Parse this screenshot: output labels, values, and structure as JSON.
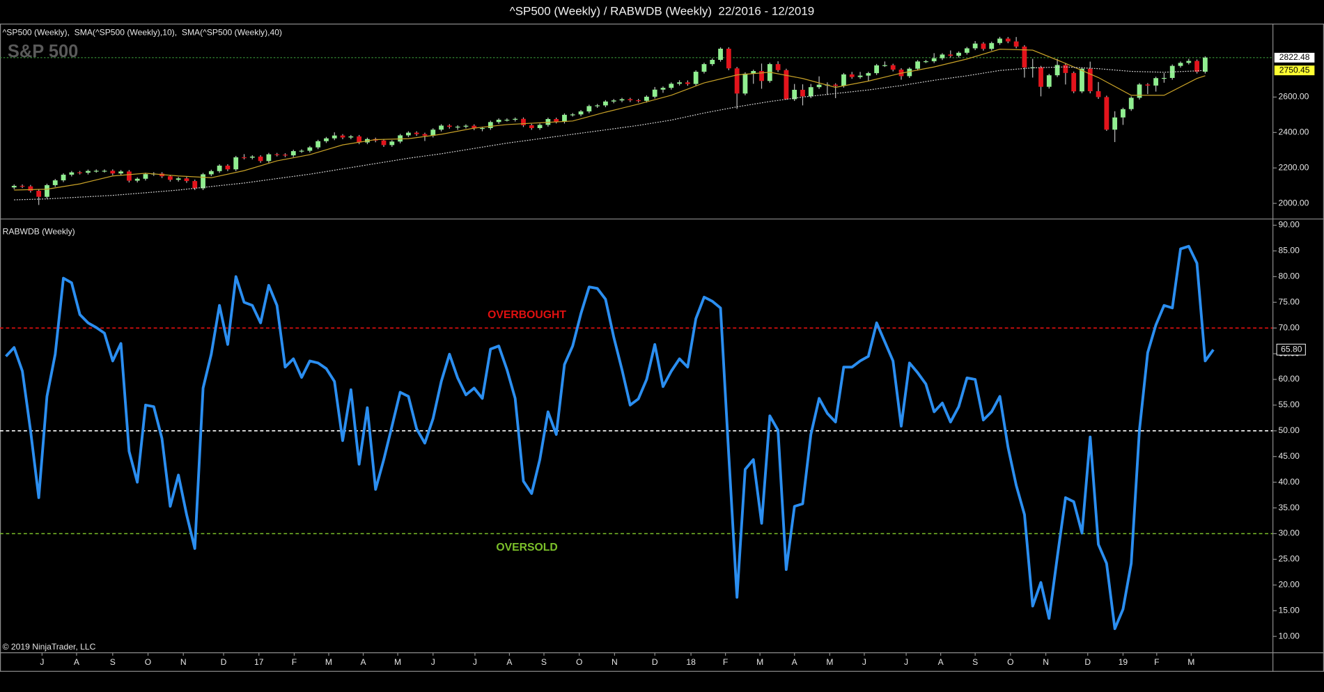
{
  "chart_data": [
    {
      "type": "candlestick",
      "title": "^SP500 (Weekly) / RABWDB (Weekly)  22/2016 - 12/2019",
      "subtitle": "^SP500 (Weekly),  SMA(^SP500 (Weekly),10),  SMA(^SP500 (Weekly),40)",
      "watermark": "S&P 500",
      "up_color": "#90ee90",
      "down_color": "#e3141c",
      "wick_color": "#bdbdbd",
      "open": [
        2090,
        2099,
        2096,
        2071,
        2037,
        2103,
        2130,
        2162,
        2175,
        2173,
        2183,
        2184,
        2184,
        2169,
        2180,
        2128,
        2139,
        2165,
        2168,
        2153,
        2133,
        2141,
        2126,
        2085,
        2164,
        2182,
        2213,
        2192,
        2260,
        2258,
        2264,
        2239,
        2277,
        2275,
        2271,
        2295,
        2297,
        2316,
        2351,
        2367,
        2383,
        2372,
        2378,
        2344,
        2363,
        2355,
        2329,
        2349,
        2384,
        2399,
        2391,
        2382,
        2416,
        2439,
        2432,
        2433,
        2438,
        2423,
        2425,
        2459,
        2472,
        2472,
        2477,
        2441,
        2425,
        2443,
        2476,
        2461,
        2500,
        2502,
        2519,
        2549,
        2553,
        2575,
        2581,
        2588,
        2582,
        2579,
        2602,
        2642,
        2652,
        2675,
        2683,
        2674,
        2743,
        2786,
        2810,
        2873,
        2762,
        2620,
        2732,
        2747,
        2691,
        2786,
        2752,
        2588,
        2641,
        2604,
        2656,
        2670,
        2670,
        2663,
        2728,
        2713,
        2721,
        2735,
        2779,
        2780,
        2755,
        2718,
        2760,
        2801,
        2802,
        2819,
        2840,
        2833,
        2850,
        2875,
        2902,
        2872,
        2905,
        2930,
        2914,
        2885,
        2767,
        2768,
        2658,
        2723,
        2781,
        2736,
        2632,
        2760,
        2633,
        2600,
        2416,
        2485,
        2532,
        2596,
        2671,
        2665,
        2707,
        2708,
        2776,
        2793,
        2804,
        2743
      ],
      "high": [
        2107,
        2107,
        2104,
        2079,
        2111,
        2138,
        2170,
        2183,
        2183,
        2191,
        2192,
        2192,
        2192,
        2188,
        2188,
        2147,
        2173,
        2176,
        2176,
        2161,
        2149,
        2149,
        2134,
        2172,
        2190,
        2221,
        2221,
        2268,
        2278,
        2272,
        2272,
        2285,
        2285,
        2283,
        2303,
        2305,
        2324,
        2359,
        2375,
        2401,
        2391,
        2386,
        2386,
        2371,
        2371,
        2363,
        2357,
        2392,
        2407,
        2407,
        2399,
        2424,
        2447,
        2447,
        2441,
        2446,
        2446,
        2433,
        2467,
        2480,
        2480,
        2485,
        2485,
        2449,
        2451,
        2484,
        2484,
        2508,
        2510,
        2527,
        2557,
        2561,
        2583,
        2589,
        2596,
        2596,
        2590,
        2610,
        2657,
        2660,
        2683,
        2695,
        2694,
        2751,
        2794,
        2818,
        2881,
        2881,
        2770,
        2740,
        2755,
        2789,
        2794,
        2802,
        2760,
        2674,
        2672,
        2674,
        2717,
        2683,
        2678,
        2736,
        2742,
        2742,
        2743,
        2787,
        2801,
        2788,
        2763,
        2768,
        2809,
        2810,
        2848,
        2848,
        2863,
        2858,
        2883,
        2916,
        2910,
        2913,
        2940,
        2939,
        2939,
        2893,
        2816,
        2776,
        2731,
        2816,
        2789,
        2744,
        2768,
        2800,
        2685,
        2608,
        2520,
        2540,
        2604,
        2679,
        2679,
        2715,
        2736,
        2784,
        2801,
        2816,
        2812,
        2830
      ],
      "low": [
        2080,
        2086,
        2061,
        1991,
        2027,
        2093,
        2120,
        2152,
        2163,
        2163,
        2173,
        2174,
        2159,
        2159,
        2118,
        2118,
        2129,
        2155,
        2143,
        2123,
        2123,
        2116,
        2075,
        2075,
        2154,
        2172,
        2182,
        2182,
        2248,
        2248,
        2229,
        2229,
        2265,
        2261,
        2261,
        2285,
        2287,
        2306,
        2341,
        2357,
        2362,
        2362,
        2334,
        2334,
        2345,
        2319,
        2319,
        2339,
        2374,
        2381,
        2352,
        2372,
        2406,
        2422,
        2415,
        2423,
        2413,
        2407,
        2415,
        2449,
        2462,
        2462,
        2431,
        2415,
        2415,
        2433,
        2451,
        2451,
        2490,
        2492,
        2509,
        2539,
        2543,
        2565,
        2571,
        2572,
        2569,
        2569,
        2592,
        2624,
        2642,
        2665,
        2664,
        2664,
        2733,
        2776,
        2800,
        2752,
        2533,
        2610,
        2675,
        2647,
        2681,
        2742,
        2585,
        2578,
        2553,
        2594,
        2646,
        2612,
        2594,
        2653,
        2703,
        2703,
        2691,
        2725,
        2770,
        2745,
        2698,
        2708,
        2750,
        2792,
        2792,
        2809,
        2823,
        2823,
        2840,
        2865,
        2862,
        2862,
        2895,
        2904,
        2875,
        2710,
        2710,
        2604,
        2648,
        2713,
        2671,
        2622,
        2622,
        2621,
        2590,
        2409,
        2346,
        2443,
        2522,
        2586,
        2617,
        2631,
        2681,
        2698,
        2766,
        2784,
        2733,
        2733
      ],
      "close": [
        2099,
        2096,
        2071,
        2037,
        2103,
        2130,
        2162,
        2175,
        2173,
        2183,
        2184,
        2184,
        2169,
        2180,
        2128,
        2139,
        2165,
        2168,
        2153,
        2133,
        2141,
        2126,
        2085,
        2164,
        2182,
        2213,
        2192,
        2260,
        2258,
        2264,
        2239,
        2277,
        2275,
        2271,
        2295,
        2297,
        2316,
        2351,
        2367,
        2383,
        2372,
        2378,
        2344,
        2363,
        2355,
        2329,
        2349,
        2384,
        2399,
        2391,
        2382,
        2416,
        2439,
        2432,
        2433,
        2438,
        2423,
        2425,
        2459,
        2472,
        2472,
        2477,
        2441,
        2425,
        2443,
        2476,
        2461,
        2500,
        2502,
        2519,
        2549,
        2553,
        2575,
        2581,
        2588,
        2582,
        2579,
        2602,
        2642,
        2652,
        2675,
        2683,
        2674,
        2743,
        2786,
        2810,
        2873,
        2762,
        2620,
        2732,
        2747,
        2691,
        2786,
        2752,
        2588,
        2641,
        2604,
        2656,
        2670,
        2670,
        2663,
        2728,
        2713,
        2721,
        2735,
        2779,
        2780,
        2755,
        2718,
        2760,
        2801,
        2802,
        2819,
        2840,
        2833,
        2850,
        2875,
        2902,
        2872,
        2905,
        2930,
        2914,
        2885,
        2767,
        2768,
        2658,
        2723,
        2781,
        2736,
        2632,
        2760,
        2633,
        2600,
        2416,
        2485,
        2532,
        2596,
        2671,
        2665,
        2707,
        2708,
        2776,
        2793,
        2804,
        2743,
        2822.48
      ],
      "series": [
        {
          "color": "#c9a227",
          "line_style": "solid",
          "x": [
            0,
            4,
            8,
            12,
            16,
            20,
            24,
            28,
            32,
            36,
            40,
            44,
            48,
            52,
            56,
            60,
            64,
            68,
            72,
            76,
            80,
            84,
            88,
            92,
            96,
            100,
            104,
            108,
            112,
            116,
            120,
            124,
            128,
            132,
            136,
            140,
            144,
            145
          ],
          "values": [
            2075,
            2080,
            2110,
            2155,
            2170,
            2155,
            2145,
            2185,
            2240,
            2275,
            2330,
            2360,
            2365,
            2390,
            2425,
            2445,
            2455,
            2465,
            2515,
            2560,
            2610,
            2680,
            2725,
            2740,
            2705,
            2655,
            2690,
            2735,
            2770,
            2815,
            2870,
            2865,
            2790,
            2710,
            2610,
            2610,
            2705,
            2720
          ]
        },
        {
          "color": "#d9d9d9",
          "line_style": "dotted",
          "x": [
            0,
            4,
            8,
            12,
            16,
            20,
            24,
            28,
            32,
            36,
            40,
            44,
            48,
            52,
            56,
            60,
            64,
            68,
            72,
            76,
            80,
            84,
            88,
            92,
            96,
            100,
            104,
            108,
            112,
            116,
            120,
            124,
            128,
            132,
            136,
            140,
            144,
            145
          ],
          "values": [
            2020,
            2025,
            2035,
            2045,
            2060,
            2075,
            2095,
            2115,
            2140,
            2165,
            2195,
            2225,
            2255,
            2280,
            2310,
            2340,
            2365,
            2390,
            2415,
            2440,
            2470,
            2510,
            2545,
            2575,
            2600,
            2620,
            2640,
            2665,
            2695,
            2720,
            2750,
            2765,
            2770,
            2760,
            2745,
            2740,
            2748,
            2750.45
          ]
        }
      ],
      "price_labels": [
        {
          "value": 2822.48,
          "label": "2822.48",
          "background": "#ffffff",
          "line_color": "#3a9a3a"
        },
        {
          "value": 2750.45,
          "label": "2750.45",
          "background": "#ffff33"
        }
      ],
      "ylim": [
        1919,
        3005
      ],
      "yticks": [
        {
          "value": 2000,
          "label": "2000.00"
        },
        {
          "value": 2200,
          "label": "2200.00"
        },
        {
          "value": 2400,
          "label": "2400.00"
        },
        {
          "value": 2600,
          "label": "2600.00"
        }
      ]
    },
    {
      "type": "line",
      "subtitle": "RABWDB (Weekly)",
      "footer": "© 2019 NinjaTrader, LLC",
      "color": "#2b8ef0",
      "values": [
        64.5,
        66.2,
        61.6,
        50,
        37,
        56.7,
        64.9,
        79.7,
        78.8,
        72.6,
        71,
        70.1,
        69,
        63.6,
        67,
        46,
        40,
        55,
        54.7,
        48.5,
        35.3,
        41.4,
        33.7,
        27.1,
        58.3,
        64.9,
        74.4,
        66.8,
        80,
        75,
        74.4,
        71,
        78.3,
        74.4,
        62.4,
        64,
        60.4,
        63.6,
        63.2,
        62.1,
        59.6,
        48.1,
        58,
        43.5,
        54.5,
        38.6,
        44.4,
        50.9,
        57.5,
        56.7,
        50.4,
        47.6,
        52.4,
        59.6,
        64.9,
        60.3,
        57,
        58.3,
        56.3,
        65.9,
        66.5,
        61.9,
        56.3,
        40.2,
        37.8,
        44.4,
        53.7,
        49.3,
        62.9,
        66.5,
        72.8,
        78,
        77.7,
        75.6,
        68.2,
        61.9,
        55,
        56.2,
        60,
        66.8,
        58.6,
        61.6,
        64,
        62.4,
        71.8,
        76,
        75.2,
        73.9,
        45.2,
        17.6,
        42.5,
        44.4,
        32,
        52.9,
        50.1,
        23,
        35.3,
        35.8,
        49.3,
        56.3,
        53.4,
        51.7,
        62.4,
        62.4,
        63.6,
        64.5,
        71,
        67.3,
        63.6,
        50.9,
        63.2,
        61.3,
        59.1,
        53.7,
        55.4,
        51.7,
        54.7,
        60.3,
        60,
        52.1,
        53.7,
        56.7,
        46.8,
        39.4,
        33.7,
        15.9,
        20.5,
        13.5,
        25.5,
        37,
        36.2,
        30.1,
        48.8,
        27.9,
        24.2,
        11.5,
        15.3,
        24.2,
        50.1,
        65.2,
        70.6,
        74.4,
        73.9,
        85.4,
        85.9,
        82.6,
        63.6,
        65.8
      ],
      "last_label": {
        "value": 65.8,
        "label": "65.80"
      },
      "hlines": [
        {
          "value": 70,
          "color": "#e01010",
          "label": "OVERBOUGHT"
        },
        {
          "value": 50,
          "color": "#ffffff"
        },
        {
          "value": 30,
          "color": "#7cc02a",
          "label": "OVERSOLD"
        }
      ],
      "xlim": [
        0,
        147
      ],
      "xticks": [
        {
          "value": 4.4,
          "label": "J"
        },
        {
          "value": 8.6,
          "label": "A"
        },
        {
          "value": 13,
          "label": "S"
        },
        {
          "value": 17.3,
          "label": "O"
        },
        {
          "value": 21.6,
          "label": "N"
        },
        {
          "value": 26.5,
          "label": "D"
        },
        {
          "value": 30.8,
          "label": "17"
        },
        {
          "value": 35.1,
          "label": "F"
        },
        {
          "value": 39.3,
          "label": "M"
        },
        {
          "value": 43.5,
          "label": "A"
        },
        {
          "value": 47.7,
          "label": "M"
        },
        {
          "value": 52,
          "label": "J"
        },
        {
          "value": 57.1,
          "label": "J"
        },
        {
          "value": 61.3,
          "label": "A"
        },
        {
          "value": 65.5,
          "label": "S"
        },
        {
          "value": 69.8,
          "label": "O"
        },
        {
          "value": 74.1,
          "label": "N"
        },
        {
          "value": 79,
          "label": "D"
        },
        {
          "value": 83.4,
          "label": "18"
        },
        {
          "value": 87.6,
          "label": "F"
        },
        {
          "value": 91.8,
          "label": "M"
        },
        {
          "value": 96,
          "label": "A"
        },
        {
          "value": 100.3,
          "label": "M"
        },
        {
          "value": 104.5,
          "label": "J"
        },
        {
          "value": 109.6,
          "label": "J"
        },
        {
          "value": 113.8,
          "label": "A"
        },
        {
          "value": 118,
          "label": "S"
        },
        {
          "value": 122.3,
          "label": "O"
        },
        {
          "value": 126.6,
          "label": "N"
        },
        {
          "value": 131.7,
          "label": "D"
        },
        {
          "value": 136,
          "label": "19"
        },
        {
          "value": 140.1,
          "label": "F"
        },
        {
          "value": 144.3,
          "label": "M"
        }
      ],
      "ylim": [
        6.9,
        90.8
      ],
      "yticks": [
        {
          "value": 10,
          "label": "10.00"
        },
        {
          "value": 15,
          "label": "15.00"
        },
        {
          "value": 20,
          "label": "20.00"
        },
        {
          "value": 25,
          "label": "25.00"
        },
        {
          "value": 30,
          "label": "30.00"
        },
        {
          "value": 35,
          "label": "35.00"
        },
        {
          "value": 40,
          "label": "40.00"
        },
        {
          "value": 45,
          "label": "45.00"
        },
        {
          "value": 50,
          "label": "50.00"
        },
        {
          "value": 55,
          "label": "55.00"
        },
        {
          "value": 60,
          "label": "60.00"
        },
        {
          "value": 65,
          "label": "65.00"
        },
        {
          "value": 70,
          "label": "70.00"
        },
        {
          "value": 75,
          "label": "75.00"
        },
        {
          "value": 80,
          "label": "80.00"
        },
        {
          "value": 85,
          "label": "85.00"
        },
        {
          "value": 90,
          "label": "90.00"
        }
      ]
    }
  ]
}
